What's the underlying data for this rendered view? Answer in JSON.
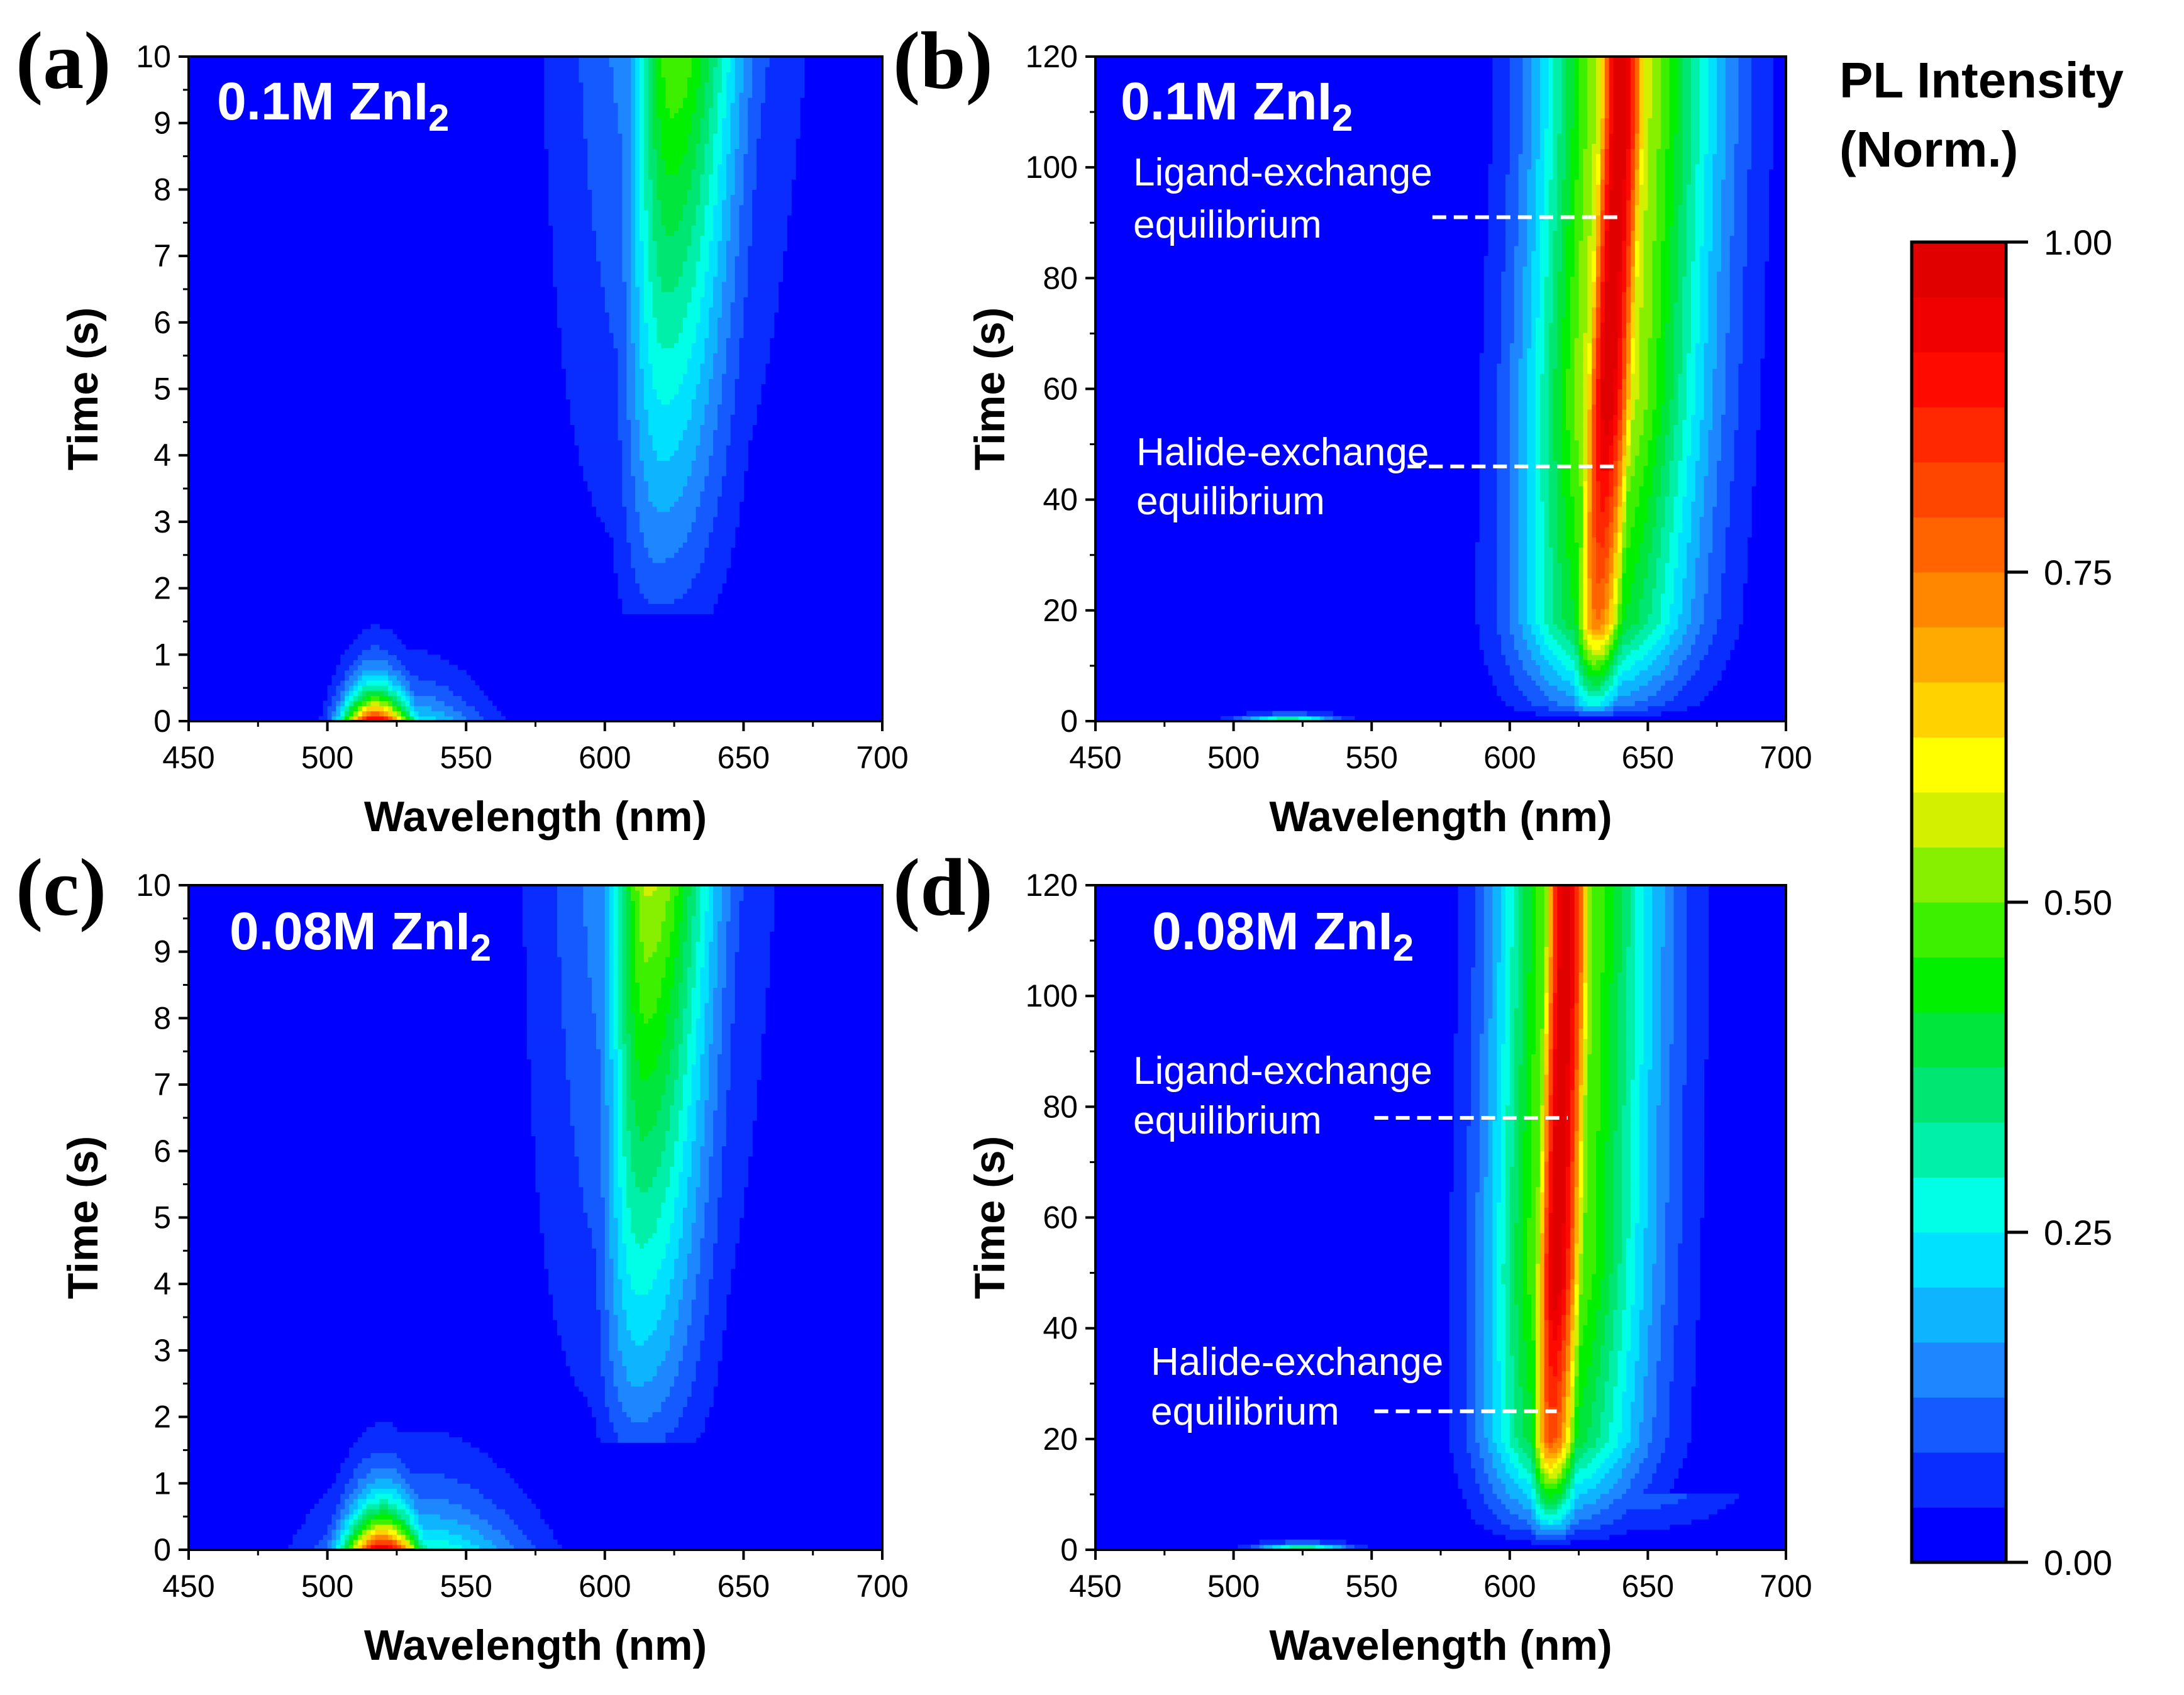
{
  "colorbar": {
    "title_line1": "PL Intensity",
    "title_line2": "(Norm.)",
    "ticks": [
      {
        "value": 0.0,
        "label": "0.00"
      },
      {
        "value": 0.25,
        "label": "0.25"
      },
      {
        "value": 0.5,
        "label": "0.50"
      },
      {
        "value": 0.75,
        "label": "0.75"
      },
      {
        "value": 1.0,
        "label": "1.00"
      }
    ],
    "levels": 24,
    "colors": [
      "#0000ff",
      "#0a2dff",
      "#145aff",
      "#1e87ff",
      "#0fb4ff",
      "#00e1ff",
      "#00ffe6",
      "#00f0aa",
      "#00e673",
      "#00e63c",
      "#00f000",
      "#3cf000",
      "#87f000",
      "#d2f000",
      "#ffff00",
      "#ffd200",
      "#ffaa00",
      "#ff8700",
      "#ff6400",
      "#ff4600",
      "#ff2800",
      "#ff0a00",
      "#f00000",
      "#e10000"
    ]
  },
  "chart_data": [
    {
      "type": "heatmap",
      "panel": "(a)",
      "sample_label": "0.1M ZnI",
      "sample_subscript": "2",
      "xlabel": "Wavelength (nm)",
      "ylabel": "Time (s)",
      "xlim": [
        450,
        700
      ],
      "ylim": [
        0,
        10
      ],
      "xticks": [
        450,
        500,
        550,
        600,
        650,
        700
      ],
      "yticks": [
        0,
        1,
        2,
        3,
        4,
        5,
        6,
        7,
        8,
        9,
        10
      ],
      "features": [
        {
          "name": "green-emission-peak",
          "center_nm": 517,
          "time_s": 0,
          "max_intensity": 1.0,
          "decays_by_s": 1
        },
        {
          "name": "red-emission-band",
          "center_nm_start": 618,
          "center_nm_end": 625,
          "onset_s": 2,
          "intensity_at_10s": 0.5
        }
      ],
      "annotations": []
    },
    {
      "type": "heatmap",
      "panel": "(b)",
      "sample_label": "0.1M ZnI",
      "sample_subscript": "2",
      "xlabel": "Wavelength (nm)",
      "ylabel": "Time (s)",
      "xlim": [
        450,
        700
      ],
      "ylim": [
        0,
        120
      ],
      "xticks": [
        450,
        500,
        550,
        600,
        650,
        700
      ],
      "yticks": [
        0,
        20,
        40,
        60,
        80,
        100,
        120
      ],
      "features": [
        {
          "name": "red-emission-band",
          "center_nm_start": 630,
          "center_nm_end": 640,
          "onset_s": 5,
          "max_intensity": 1.0
        }
      ],
      "annotations": [
        {
          "text_line1": "Ligand-exchange",
          "text_line2": "equilibrium",
          "time_s": 91,
          "x_start_nm": 572,
          "x_end_nm": 640
        },
        {
          "text_line1": "Halide-exchange",
          "text_line2": "equilibrium",
          "time_s": 46,
          "x_start_nm": 563,
          "x_end_nm": 640
        }
      ]
    },
    {
      "type": "heatmap",
      "panel": "(c)",
      "sample_label": "0.08M ZnI",
      "sample_subscript": "2",
      "xlabel": "Wavelength (nm)",
      "ylabel": "Time (s)",
      "xlim": [
        450,
        700
      ],
      "ylim": [
        0,
        10
      ],
      "xticks": [
        450,
        500,
        550,
        600,
        650,
        700
      ],
      "yticks": [
        0,
        1,
        2,
        3,
        4,
        5,
        6,
        7,
        8,
        9,
        10
      ],
      "features": [
        {
          "name": "green-emission-peak",
          "center_nm": 520,
          "time_s": 0,
          "max_intensity": 1.0,
          "decays_by_s": 1.3
        },
        {
          "name": "red-emission-band",
          "center_nm_start": 610,
          "center_nm_end": 615,
          "onset_s": 2,
          "intensity_at_10s": 0.55
        }
      ],
      "annotations": []
    },
    {
      "type": "heatmap",
      "panel": "(d)",
      "sample_label": "0.08M ZnI",
      "sample_subscript": "2",
      "xlabel": "Wavelength (nm)",
      "ylabel": "Time (s)",
      "xlim": [
        450,
        700
      ],
      "ylim": [
        0,
        120
      ],
      "xticks": [
        450,
        500,
        550,
        600,
        650,
        700
      ],
      "yticks": [
        0,
        20,
        40,
        60,
        80,
        100,
        120
      ],
      "features": [
        {
          "name": "red-emission-band",
          "center_nm_start": 614,
          "center_nm_end": 620,
          "onset_s": 8,
          "max_intensity": 1.0
        }
      ],
      "annotations": [
        {
          "text_line1": "Ligand-exchange",
          "text_line2": "equilibrium",
          "time_s": 78,
          "x_start_nm": 551,
          "x_end_nm": 621
        },
        {
          "text_line1": "Halide-exchange",
          "text_line2": "equilibrium",
          "time_s": 25,
          "x_start_nm": 551,
          "x_end_nm": 617
        }
      ]
    }
  ]
}
